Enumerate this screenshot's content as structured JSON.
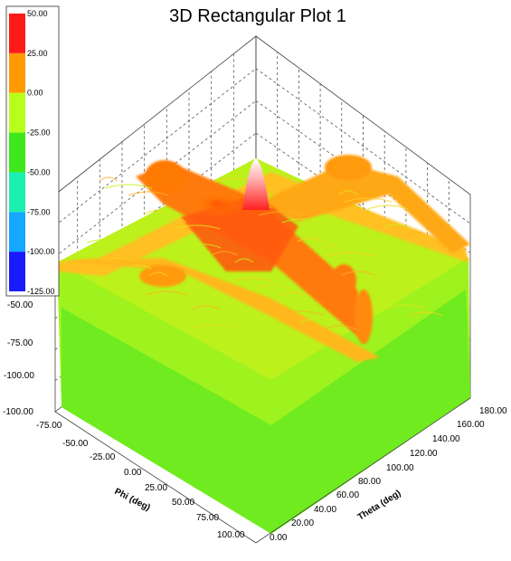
{
  "chart_data": {
    "type": "surface",
    "title": "3D Rectangular Plot 1",
    "xlabel": "Theta (deg)",
    "ylabel": "Phi (deg)",
    "zlabel": "",
    "theta_ticks": [
      "0.00",
      "20.00",
      "40.00",
      "60.00",
      "80.00",
      "100.00",
      "120.00",
      "140.00",
      "160.00",
      "180.00"
    ],
    "phi_ticks": [
      "-75.00",
      "-50.00",
      "-25.00",
      "0.00",
      "25.00",
      "50.00",
      "75.00",
      "100.00"
    ],
    "z_ticks": [
      "-50.00",
      "-75.00",
      "-100.00"
    ],
    "theta_range": [
      0,
      180
    ],
    "phi_range": [
      -90,
      100
    ],
    "z_range": [
      -100,
      50
    ],
    "peak": {
      "theta": 90,
      "phi": 0,
      "value": 50
    },
    "colorbar": {
      "labels": [
        "50.00",
        "25.00",
        "0.00",
        "-25.00",
        "-50.00",
        "-75.00",
        "-100.00",
        "-125.00"
      ],
      "colors": [
        "#ff1a1a",
        "#ff9a00",
        "#b7ff1a",
        "#3ee81a",
        "#1af0b0",
        "#14a8ff",
        "#1a1aff"
      ]
    },
    "grid": true
  }
}
